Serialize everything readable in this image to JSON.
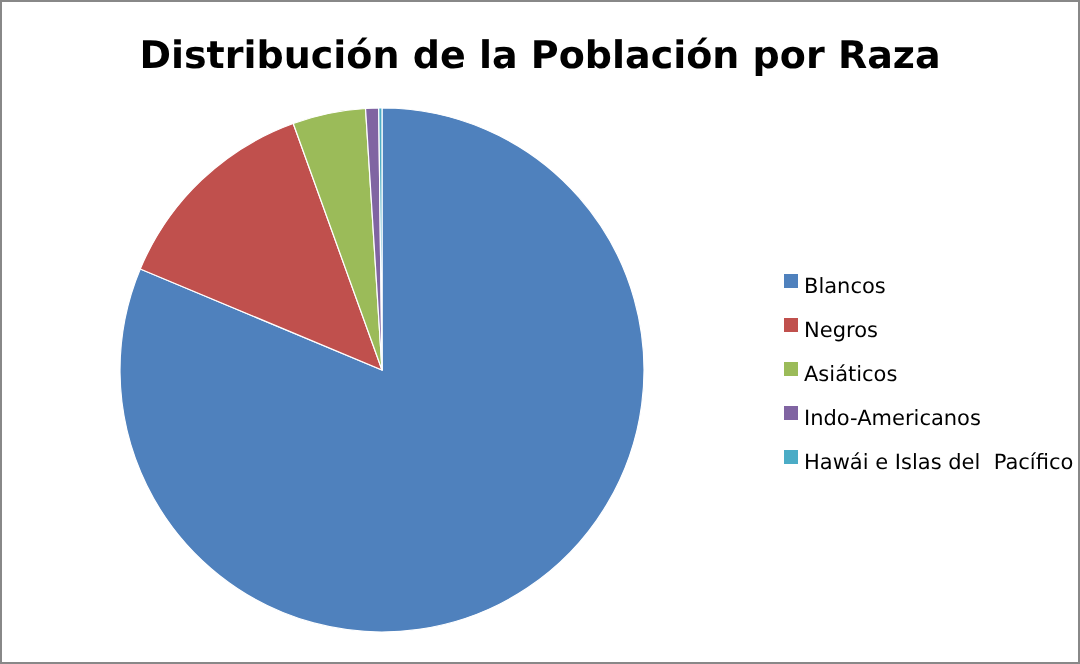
{
  "chart_data": {
    "type": "pie",
    "title": "Distribución de la Población por Raza",
    "categories": [
      "Blancos",
      "Negros",
      "Asiáticos",
      "Indo-Americanos",
      "Hawái e Islas del  Pacífico"
    ],
    "values": [
      81.3,
      13.2,
      4.5,
      0.8,
      0.2
    ],
    "colors": [
      "#4f81bd",
      "#c0504d",
      "#9bbb59",
      "#8064a2",
      "#4bacc6"
    ],
    "legend": "right"
  }
}
